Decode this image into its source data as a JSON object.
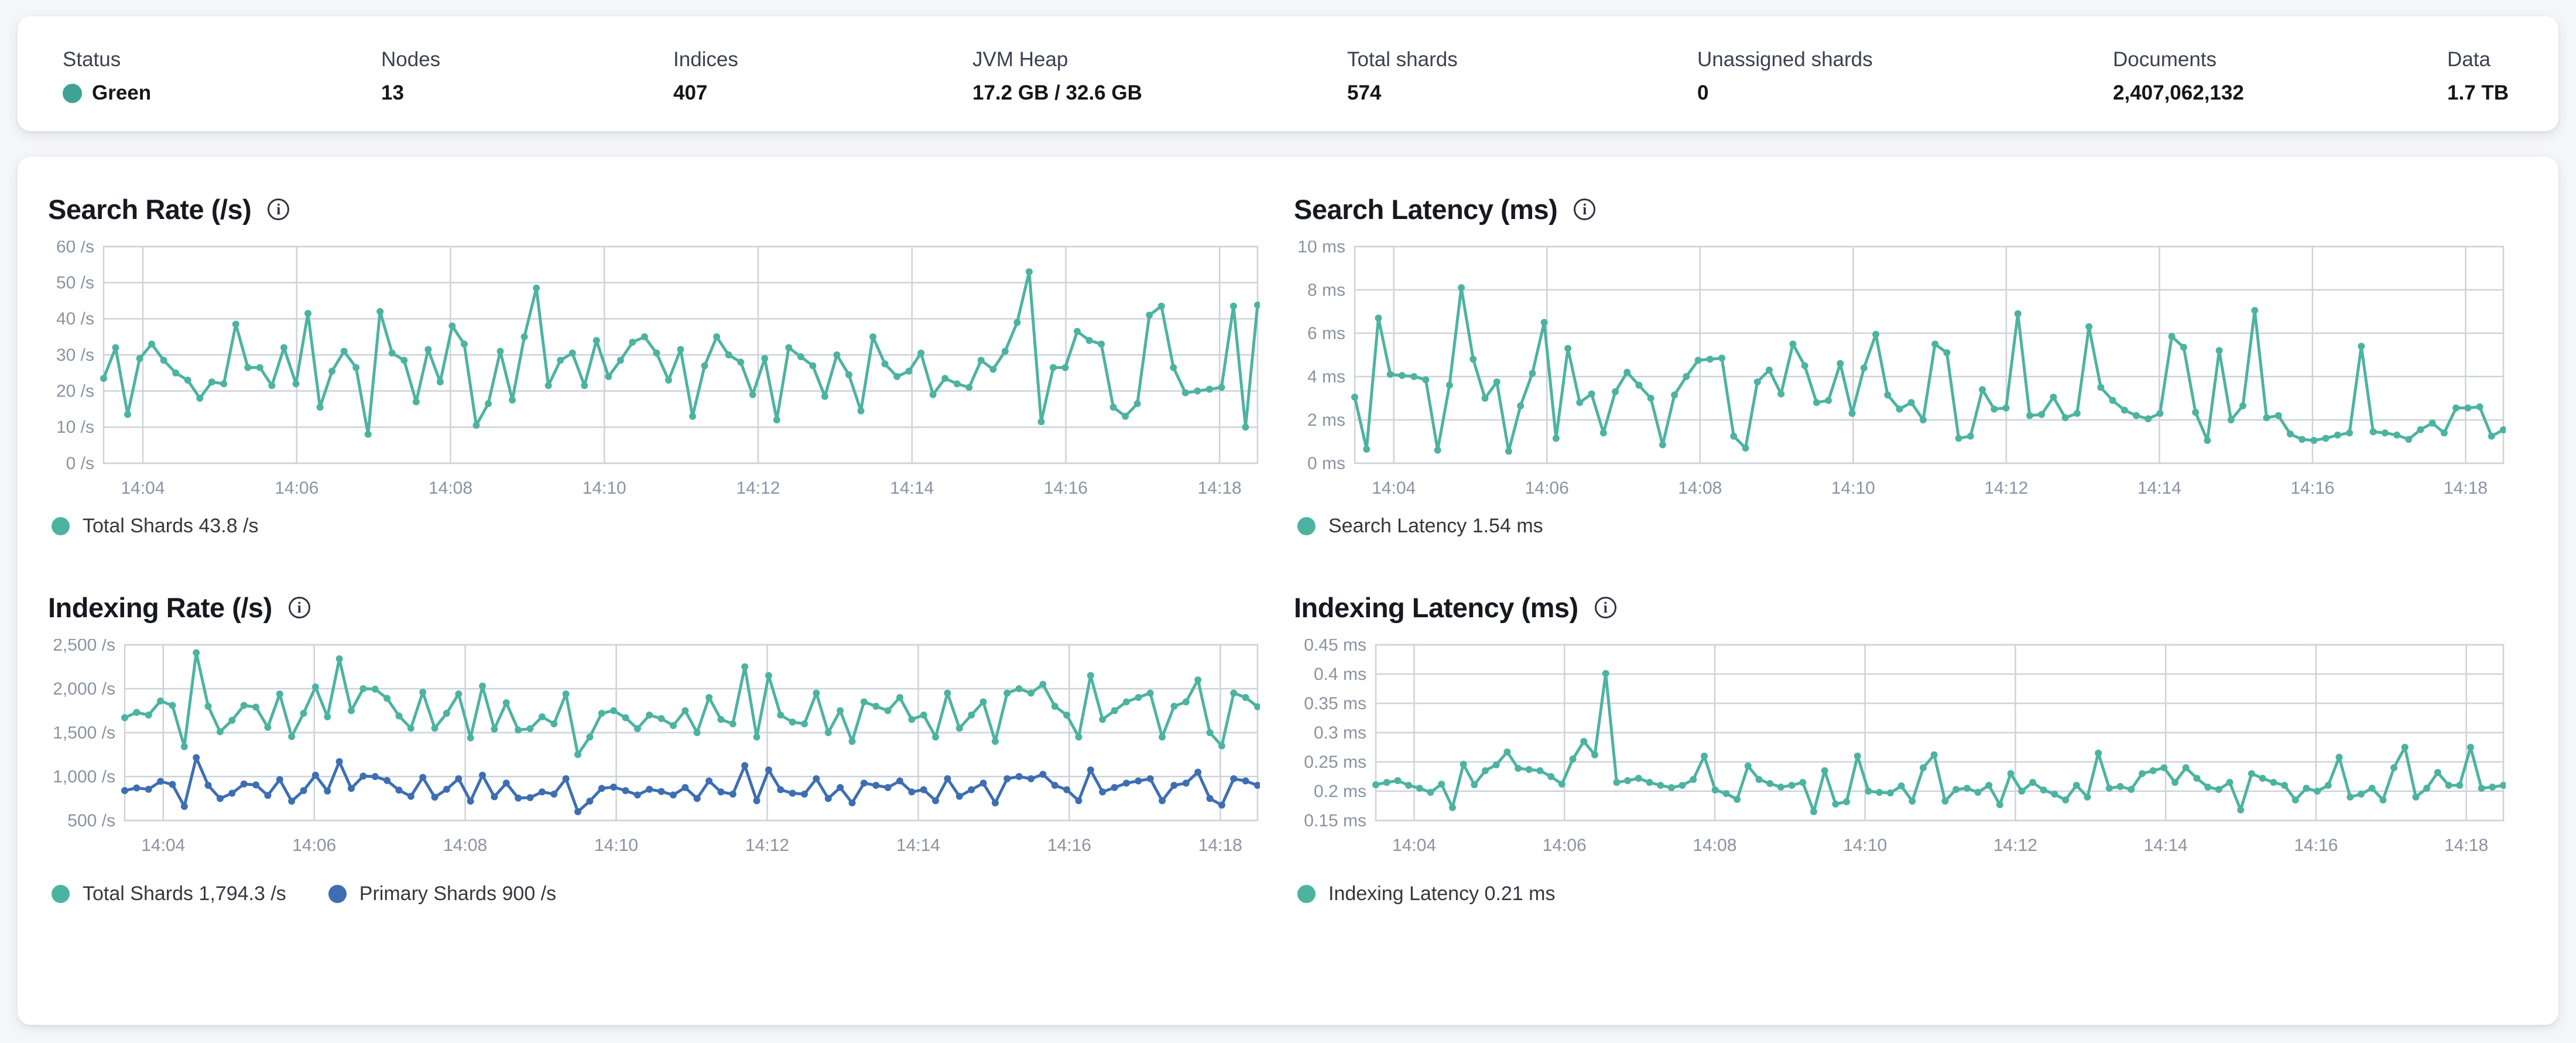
{
  "top_bar": {
    "status_dot_style": "background:#3EA294",
    "stats": [
      {
        "label": "Status",
        "value": "Green"
      },
      {
        "label": "Nodes",
        "value": "13"
      },
      {
        "label": "Indices",
        "value": "407"
      },
      {
        "label": "JVM Heap",
        "value": "17.2 GB / 32.6 GB"
      },
      {
        "label": "Total shards",
        "value": "574"
      },
      {
        "label": "Unassigned shards",
        "value": "0"
      },
      {
        "label": "Documents",
        "value": "2,407,062,132"
      },
      {
        "label": "Data",
        "value": "1.7 TB"
      }
    ]
  },
  "colors": {
    "teal_line": "#4DB3A1",
    "blue_line": "#3E6EB2",
    "status_green": "#3EA294",
    "grid": "#CED2D9",
    "axis_text": "#8A93A2"
  },
  "chart_data": [
    {
      "type": "line",
      "title": "Search Rate (/s)",
      "info_icon": "i",
      "ylim": [
        0,
        60
      ],
      "grid": true,
      "legend_position": "bottom",
      "y_ticks": [
        {
          "value": 0,
          "label": "0 /s"
        },
        {
          "value": 10,
          "label": "10 /s"
        },
        {
          "value": 20,
          "label": "20 /s"
        },
        {
          "value": 30,
          "label": "30 /s"
        },
        {
          "value": 40,
          "label": "40 /s"
        },
        {
          "value": 50,
          "label": "50 /s"
        },
        {
          "value": 60,
          "label": "60 /s"
        }
      ],
      "x_labels": [
        "14:04",
        "14:06",
        "14:08",
        "14:10",
        "14:12",
        "14:14",
        "14:16",
        "14:18"
      ],
      "x_first_label_frac": 0.034,
      "x_label_step_frac": 0.1333,
      "series": [
        {
          "name": "Total Shards",
          "legend": "Total Shards 43.8 /s",
          "color": "#4DB3A1",
          "values": [
            23.5,
            32,
            13.5,
            29,
            33,
            28.5,
            25,
            23,
            18,
            22.5,
            22,
            38.5,
            26.5,
            26.5,
            21.5,
            32,
            22,
            41.5,
            15.5,
            25.5,
            31,
            26.5,
            8,
            42,
            30.5,
            28.5,
            17,
            31.5,
            22.5,
            38,
            33,
            10.5,
            16.5,
            31,
            17.5,
            35,
            48.5,
            21.5,
            28.5,
            30.5,
            21.5,
            34,
            24,
            28.5,
            33.5,
            35,
            30.5,
            23,
            31.5,
            13,
            27,
            35,
            30,
            28,
            19,
            29,
            12,
            32,
            29.5,
            27,
            18.5,
            30,
            24.5,
            14.5,
            35,
            27.5,
            24,
            25.5,
            30.5,
            19,
            23.5,
            22,
            21,
            28.5,
            26,
            31,
            39,
            53,
            11.5,
            26.5,
            26.5,
            36.5,
            34,
            33,
            15.5,
            13,
            16.5,
            41,
            43.5,
            26.5,
            19.5,
            20,
            20.5,
            21,
            43.5,
            10,
            43.8
          ]
        }
      ]
    },
    {
      "type": "line",
      "title": "Search Latency (ms)",
      "info_icon": "i",
      "ylim": [
        0,
        10
      ],
      "grid": true,
      "legend_position": "bottom",
      "y_ticks": [
        {
          "value": 0,
          "label": "0 ms"
        },
        {
          "value": 2,
          "label": "2 ms"
        },
        {
          "value": 4,
          "label": "4 ms"
        },
        {
          "value": 6,
          "label": "6 ms"
        },
        {
          "value": 8,
          "label": "8 ms"
        },
        {
          "value": 10,
          "label": "10 ms"
        }
      ],
      "x_labels": [
        "14:04",
        "14:06",
        "14:08",
        "14:10",
        "14:12",
        "14:14",
        "14:16",
        "14:18"
      ],
      "x_first_label_frac": 0.034,
      "x_label_step_frac": 0.1333,
      "series": [
        {
          "name": "Search Latency",
          "legend": "Search Latency 1.54 ms",
          "color": "#4DB3A1",
          "values": [
            3.05,
            0.65,
            6.7,
            4.1,
            4.05,
            4.0,
            3.85,
            0.6,
            3.6,
            8.1,
            4.8,
            3.0,
            3.75,
            0.55,
            2.65,
            4.15,
            6.5,
            1.15,
            5.3,
            2.8,
            3.2,
            1.4,
            3.3,
            4.2,
            3.6,
            3.0,
            0.85,
            3.15,
            4.0,
            4.75,
            4.8,
            4.85,
            1.25,
            0.7,
            3.75,
            4.3,
            3.2,
            5.5,
            4.5,
            2.8,
            2.9,
            4.6,
            2.3,
            4.4,
            5.95,
            3.15,
            2.5,
            2.8,
            2.0,
            5.5,
            5.1,
            1.15,
            1.25,
            3.4,
            2.5,
            2.55,
            6.9,
            2.2,
            2.25,
            3.05,
            2.1,
            2.3,
            6.3,
            3.5,
            2.9,
            2.45,
            2.2,
            2.05,
            2.3,
            5.85,
            5.35,
            2.35,
            1.05,
            5.2,
            2.0,
            2.65,
            7.05,
            2.1,
            2.2,
            1.35,
            1.1,
            1.05,
            1.15,
            1.3,
            1.4,
            5.4,
            1.45,
            1.4,
            1.3,
            1.1,
            1.55,
            1.85,
            1.4,
            2.55,
            2.55,
            2.6,
            1.25,
            1.54
          ]
        }
      ]
    },
    {
      "type": "line",
      "title": "Indexing Rate (/s)",
      "info_icon": "i",
      "ylim": [
        500,
        2500
      ],
      "grid": true,
      "legend_position": "bottom",
      "y_ticks": [
        {
          "value": 500,
          "label": "500 /s"
        },
        {
          "value": 1000,
          "label": "1,000 /s"
        },
        {
          "value": 1500,
          "label": "1,500 /s"
        },
        {
          "value": 2000,
          "label": "2,000 /s"
        },
        {
          "value": 2500,
          "label": "2,500 /s"
        }
      ],
      "x_labels": [
        "14:04",
        "14:06",
        "14:08",
        "14:10",
        "14:12",
        "14:14",
        "14:16",
        "14:18"
      ],
      "x_first_label_frac": 0.034,
      "x_label_step_frac": 0.1333,
      "series": [
        {
          "name": "Total Shards",
          "legend": "Total Shards 1,794.3 /s",
          "color": "#4DB3A1",
          "values": [
            1670,
            1730,
            1700,
            1860,
            1810,
            1340,
            2410,
            1800,
            1510,
            1640,
            1810,
            1790,
            1560,
            1940,
            1455,
            1720,
            2020,
            1680,
            2340,
            1750,
            2000,
            1995,
            1890,
            1690,
            1550,
            1960,
            1550,
            1720,
            1940,
            1440,
            2030,
            1540,
            1840,
            1530,
            1545,
            1680,
            1600,
            1940,
            1250,
            1450,
            1720,
            1750,
            1670,
            1545,
            1700,
            1660,
            1580,
            1750,
            1500,
            1900,
            1650,
            1600,
            2250,
            1450,
            2150,
            1700,
            1620,
            1600,
            1950,
            1500,
            1750,
            1400,
            1850,
            1800,
            1750,
            1900,
            1650,
            1700,
            1450,
            1950,
            1550,
            1700,
            1850,
            1400,
            1950,
            2000,
            1950,
            2050,
            1800,
            1700,
            1450,
            2150,
            1650,
            1750,
            1850,
            1900,
            1950,
            1450,
            1800,
            1850,
            2100,
            1500,
            1350,
            1950,
            1900,
            1794.3
          ]
        },
        {
          "name": "Primary Shards",
          "legend": "Primary Shards 900 /s",
          "color": "#3E6EB2",
          "values": [
            840,
            870,
            855,
            945,
            910,
            660,
            1215,
            900,
            750,
            810,
            915,
            905,
            785,
            965,
            720,
            840,
            1015,
            835,
            1170,
            865,
            1005,
            1000,
            955,
            845,
            775,
            990,
            765,
            855,
            975,
            720,
            1015,
            770,
            925,
            755,
            760,
            825,
            800,
            975,
            600,
            720,
            865,
            880,
            840,
            790,
            855,
            830,
            790,
            875,
            750,
            950,
            825,
            800,
            1125,
            725,
            1075,
            850,
            810,
            800,
            975,
            750,
            875,
            700,
            925,
            900,
            875,
            950,
            825,
            850,
            725,
            975,
            775,
            850,
            925,
            700,
            975,
            1000,
            975,
            1025,
            900,
            850,
            725,
            1075,
            825,
            875,
            925,
            950,
            975,
            725,
            900,
            925,
            1050,
            750,
            675,
            975,
            950,
            900
          ]
        }
      ]
    },
    {
      "type": "line",
      "title": "Indexing Latency (ms)",
      "info_icon": "i",
      "ylim": [
        0.15,
        0.45
      ],
      "grid": true,
      "legend_position": "bottom",
      "y_ticks": [
        {
          "value": 0.15,
          "label": "0.15 ms"
        },
        {
          "value": 0.2,
          "label": "0.2 ms"
        },
        {
          "value": 0.25,
          "label": "0.25 ms"
        },
        {
          "value": 0.3,
          "label": "0.3 ms"
        },
        {
          "value": 0.35,
          "label": "0.35 ms"
        },
        {
          "value": 0.4,
          "label": "0.4 ms"
        },
        {
          "value": 0.45,
          "label": "0.45 ms"
        }
      ],
      "x_labels": [
        "14:04",
        "14:06",
        "14:08",
        "14:10",
        "14:12",
        "14:14",
        "14:16",
        "14:18"
      ],
      "x_first_label_frac": 0.034,
      "x_label_step_frac": 0.1333,
      "series": [
        {
          "name": "Indexing Latency",
          "legend": "Indexing Latency 0.21 ms",
          "color": "#4DB3A1",
          "values": [
            0.211,
            0.215,
            0.218,
            0.21,
            0.205,
            0.198,
            0.212,
            0.172,
            0.246,
            0.211,
            0.235,
            0.245,
            0.267,
            0.239,
            0.237,
            0.235,
            0.225,
            0.212,
            0.255,
            0.285,
            0.262,
            0.401,
            0.215,
            0.218,
            0.222,
            0.215,
            0.21,
            0.206,
            0.21,
            0.22,
            0.26,
            0.202,
            0.196,
            0.186,
            0.243,
            0.22,
            0.213,
            0.207,
            0.21,
            0.215,
            0.165,
            0.235,
            0.178,
            0.182,
            0.26,
            0.2,
            0.198,
            0.197,
            0.209,
            0.183,
            0.24,
            0.262,
            0.183,
            0.203,
            0.205,
            0.198,
            0.21,
            0.177,
            0.23,
            0.2,
            0.215,
            0.202,
            0.195,
            0.185,
            0.21,
            0.19,
            0.265,
            0.205,
            0.208,
            0.203,
            0.23,
            0.235,
            0.24,
            0.215,
            0.24,
            0.222,
            0.207,
            0.203,
            0.215,
            0.168,
            0.23,
            0.222,
            0.215,
            0.21,
            0.185,
            0.205,
            0.2,
            0.21,
            0.258,
            0.19,
            0.195,
            0.205,
            0.185,
            0.24,
            0.275,
            0.19,
            0.205,
            0.232,
            0.21,
            0.21,
            0.275,
            0.205,
            0.207,
            0.21
          ]
        }
      ]
    }
  ]
}
